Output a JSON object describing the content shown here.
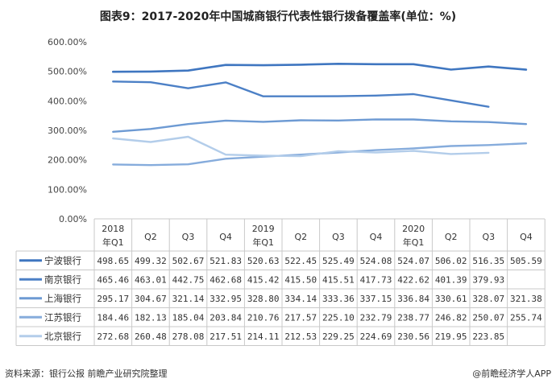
{
  "title": "图表9：2017-2020年中国城商银行代表性银行拨备覆盖率(单位：%)",
  "source": "资料来源：银行公报 前瞻产业研究院整理",
  "brand": "@前瞻经济学人APP",
  "chart_data": {
    "type": "line",
    "title": "图表9：2017-2020年中国城商银行代表性银行拨备覆盖率(单位：%)",
    "unit": "%",
    "categories": [
      "2018\n年Q1",
      "Q2",
      "Q3",
      "Q4",
      "2019\n年Q1",
      "Q2",
      "Q3",
      "Q4",
      "2020\n年Q1",
      "Q2",
      "Q3",
      "Q4"
    ],
    "y_ticks": [
      "0.00%",
      "100.00%",
      "200.00%",
      "300.00%",
      "400.00%",
      "500.00%",
      "600.00%"
    ],
    "ylim": [
      0,
      600
    ],
    "grid": false,
    "legend_placement": "data-table-left",
    "series": [
      {
        "name": "宁波银行",
        "color": "#3f76c0",
        "width": 2.6,
        "values": [
          498.65,
          499.32,
          502.67,
          521.83,
          520.63,
          522.45,
          525.49,
          524.08,
          524.07,
          506.02,
          516.35,
          505.59
        ],
        "labels": [
          "498.65",
          "499.32",
          "502.67",
          "521.83",
          "520.63",
          "522.45",
          "525.49",
          "524.08",
          "524.07",
          "506.02",
          "516.35",
          "505.59"
        ]
      },
      {
        "name": "南京银行",
        "color": "#4c80c6",
        "width": 2.4,
        "values": [
          465.46,
          463.01,
          442.75,
          462.68,
          415.42,
          415.5,
          415.51,
          417.73,
          422.62,
          401.39,
          379.93,
          null
        ],
        "labels": [
          "465.46",
          "463.01",
          "442.75",
          "462.68",
          "415.42",
          "415.50",
          "415.51",
          "417.73",
          "422.62",
          "401.39",
          "379.93",
          ""
        ]
      },
      {
        "name": "上海银行",
        "color": "#6d9ad3",
        "width": 2.4,
        "values": [
          295.17,
          304.67,
          321.14,
          332.95,
          328.8,
          334.14,
          333.36,
          337.15,
          336.84,
          330.61,
          328.07,
          321.38
        ],
        "labels": [
          "295.17",
          "304.67",
          "321.14",
          "332.95",
          "328.80",
          "334.14",
          "333.36",
          "337.15",
          "336.84",
          "330.61",
          "328.07",
          "321.38"
        ]
      },
      {
        "name": "江苏银行",
        "color": "#86acdc",
        "width": 2.4,
        "values": [
          184.46,
          182.13,
          185.04,
          203.84,
          210.76,
          217.57,
          225.1,
          232.79,
          238.77,
          246.82,
          250.07,
          255.74
        ],
        "labels": [
          "184.46",
          "182.13",
          "185.04",
          "203.84",
          "210.76",
          "217.57",
          "225.10",
          "232.79",
          "238.77",
          "246.82",
          "250.07",
          "255.74"
        ]
      },
      {
        "name": "北京银行",
        "color": "#b3cdea",
        "width": 2.4,
        "values": [
          272.68,
          260.48,
          278.08,
          217.51,
          214.11,
          212.53,
          229.25,
          224.69,
          230.56,
          219.95,
          223.85,
          null
        ],
        "labels": [
          "272.68",
          "260.48",
          "278.08",
          "217.51",
          "214.11",
          "212.53",
          "229.25",
          "224.69",
          "230.56",
          "219.95",
          "223.85",
          ""
        ]
      }
    ]
  }
}
